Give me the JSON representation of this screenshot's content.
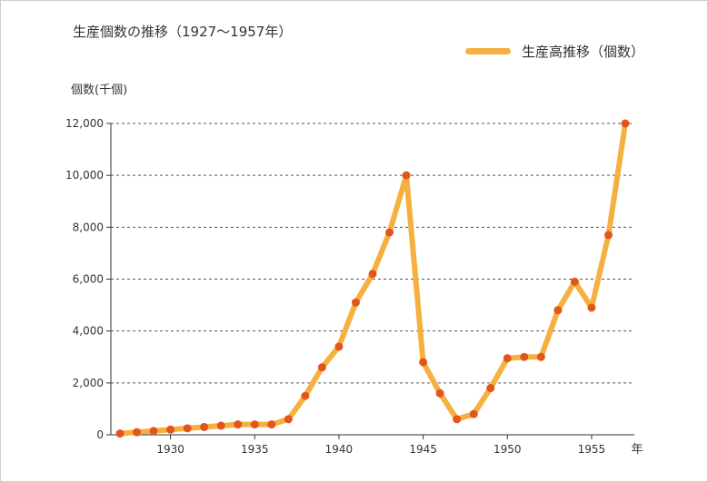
{
  "chart_data": {
    "type": "line",
    "title": "生産個数の推移（1927〜1957年）",
    "ylabel": "個数(千個)",
    "xlabel": "年",
    "legend": "top-right",
    "grid": "horizontal-dashed",
    "ylim": [
      0,
      12000
    ],
    "xlim": [
      1927,
      1957
    ],
    "x_ticks": [
      1930,
      1935,
      1940,
      1945,
      1950,
      1955
    ],
    "y_ticks": [
      0,
      2000,
      4000,
      6000,
      8000,
      10000,
      12000
    ],
    "x_tick_labels": [
      "1930",
      "1935",
      "1940",
      "1945",
      "1950",
      "1955"
    ],
    "y_tick_labels": [
      "0",
      "2,000",
      "4,000",
      "6,000",
      "8,000",
      "10,000",
      "12,000"
    ],
    "colors": {
      "line": "#f5b040",
      "marker": "#e2561b",
      "grid": "#555555",
      "axis": "#333333"
    },
    "series": [
      {
        "name": "生産高推移（個数）",
        "x": [
          1927,
          1928,
          1929,
          1930,
          1931,
          1932,
          1933,
          1934,
          1935,
          1936,
          1937,
          1938,
          1939,
          1940,
          1941,
          1942,
          1943,
          1944,
          1945,
          1946,
          1947,
          1948,
          1949,
          1950,
          1951,
          1952,
          1953,
          1954,
          1955,
          1956,
          1957
        ],
        "values": [
          50,
          100,
          150,
          200,
          250,
          300,
          350,
          400,
          400,
          400,
          600,
          1500,
          2600,
          3400,
          5100,
          6200,
          7800,
          10000,
          2800,
          1600,
          600,
          800,
          1800,
          2950,
          3000,
          3000,
          4800,
          5900,
          4900,
          7700,
          12000
        ]
      }
    ]
  }
}
